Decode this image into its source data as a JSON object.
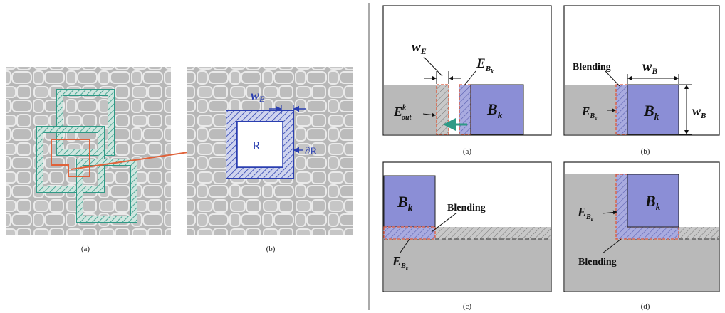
{
  "colors": {
    "stone_bg": "#b9b9b9",
    "stone_line": "#e9e9e9",
    "teal": "#2f9a86",
    "orange": "#e0623a",
    "blue": "#2b3fb0",
    "block_fill": "#8b8ed6",
    "gray_region": "#b9b9b9",
    "dashed_red": "#e05a3a"
  },
  "left_panel": {
    "caption_a": "(a)",
    "caption_b": "(b)",
    "label_R": "R",
    "label_dR": "∂R",
    "label_wE_base": "w",
    "label_wE_sub": "E"
  },
  "right_panel": {
    "a": {
      "caption": "(a)",
      "wE_base": "w",
      "wE_sub": "E",
      "E_base": "E",
      "E_sub": "B",
      "E_subsub": "k",
      "Eout_base": "E",
      "Eout_sup": "k",
      "Eout_sub": "out",
      "B_base": "B",
      "B_sub": "k"
    },
    "b": {
      "caption": "(b)",
      "blending": "Blending",
      "wB_base": "w",
      "wB_sub": "B",
      "wB2_base": "w",
      "wB2_sub": "B",
      "E_base": "E",
      "E_sub": "B",
      "E_subsub": "k",
      "B_base": "B",
      "B_sub": "k"
    },
    "c": {
      "caption": "(c)",
      "blending": "Blending",
      "E_base": "E",
      "E_sub": "B",
      "E_subsub": "k",
      "B_base": "B",
      "B_sub": "k"
    },
    "d": {
      "caption": "(d)",
      "blending": "Blending",
      "E_base": "E",
      "E_sub": "B",
      "E_subsub": "k",
      "B_base": "B",
      "B_sub": "k"
    }
  }
}
